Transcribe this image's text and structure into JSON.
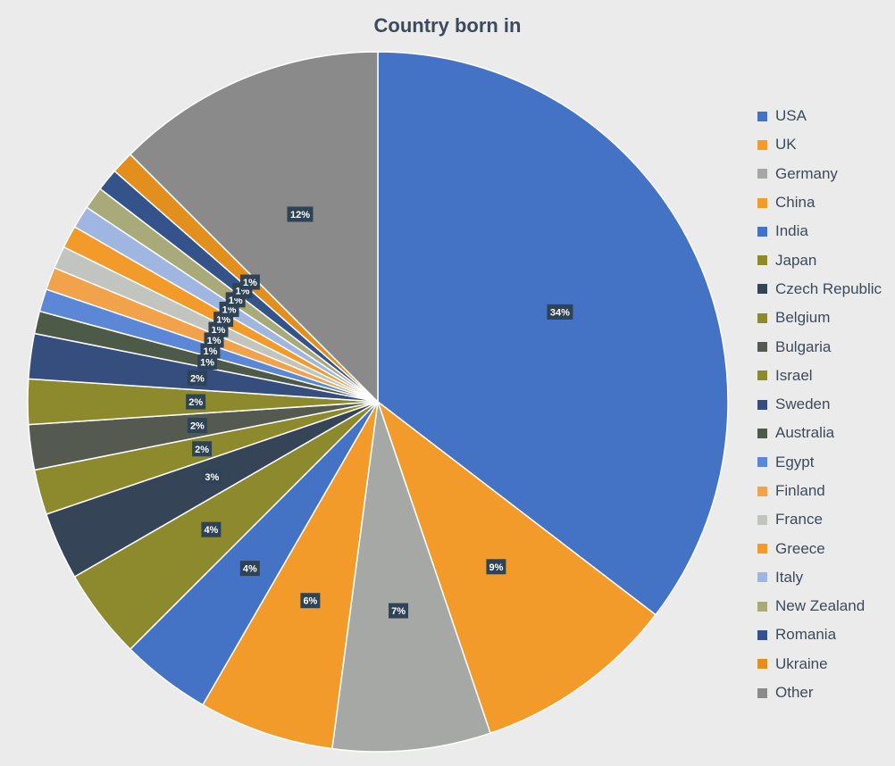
{
  "chart_data": {
    "type": "pie",
    "title": "Country born in",
    "legend_position": "right",
    "slices": [
      {
        "name": "USA",
        "value": 34,
        "label": "34%",
        "color": "#4472c4"
      },
      {
        "name": "UK",
        "value": 9,
        "label": "9%",
        "color": "#f29b2a"
      },
      {
        "name": "Germany",
        "value": 7,
        "label": "7%",
        "color": "#a5a8a5"
      },
      {
        "name": "China",
        "value": 6,
        "label": "6%",
        "color": "#f29b2a"
      },
      {
        "name": "India",
        "value": 4,
        "label": "4%",
        "color": "#4472c4"
      },
      {
        "name": "Japan",
        "value": 4,
        "label": "4%",
        "color": "#8c8a2c"
      },
      {
        "name": "Czech Republic",
        "value": 3,
        "label": "3%",
        "color": "#354457"
      },
      {
        "name": "Belgium",
        "value": 2,
        "label": "2%",
        "color": "#8c8a2c"
      },
      {
        "name": "Bulgaria",
        "value": 2,
        "label": "2%",
        "color": "#545a4f"
      },
      {
        "name": "Israel",
        "value": 2,
        "label": "2%",
        "color": "#8c8a2c"
      },
      {
        "name": "Sweden",
        "value": 2,
        "label": "2%",
        "color": "#354e7d"
      },
      {
        "name": "Australia",
        "value": 1,
        "label": "1%",
        "color": "#4e5a48"
      },
      {
        "name": "Egypt",
        "value": 1,
        "label": "1%",
        "color": "#5b87d6"
      },
      {
        "name": "Finland",
        "value": 1,
        "label": "1%",
        "color": "#f2a24a"
      },
      {
        "name": "France",
        "value": 1,
        "label": "1%",
        "color": "#c2c4c0"
      },
      {
        "name": "Greece",
        "value": 1,
        "label": "1%",
        "color": "#f29b2a"
      },
      {
        "name": "Italy",
        "value": 1,
        "label": "1%",
        "color": "#9fb6e0"
      },
      {
        "name": "New Zealand",
        "value": 1,
        "label": "1%",
        "color": "#a9aa7a"
      },
      {
        "name": "Romania",
        "value": 1,
        "label": "1%",
        "color": "#34538a"
      },
      {
        "name": "Ukraine",
        "value": 1,
        "label": "1%",
        "color": "#e28f1e"
      },
      {
        "name": "Other",
        "value": 12,
        "label": "12%",
        "color": "#8a8a8a"
      }
    ]
  }
}
